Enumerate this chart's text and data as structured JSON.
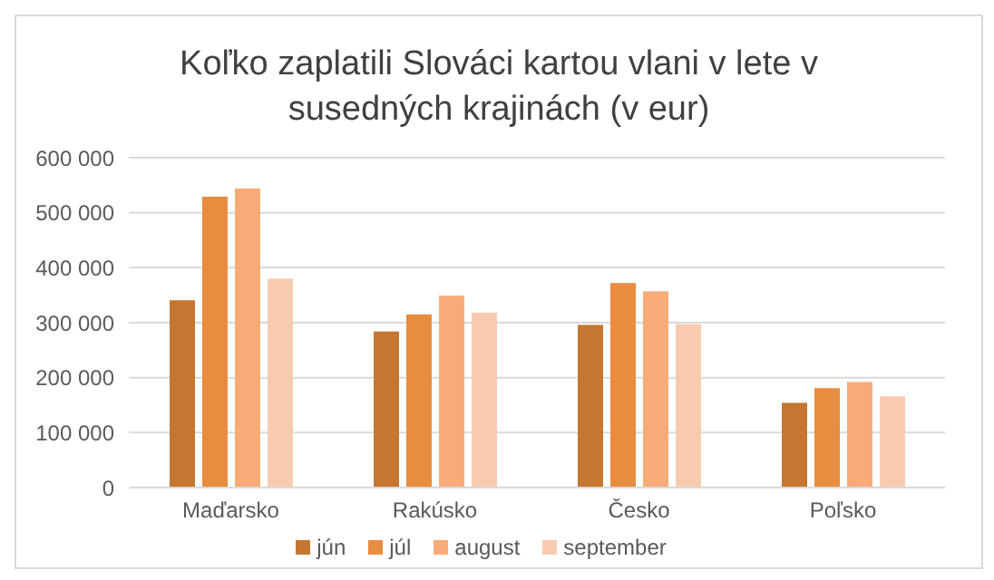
{
  "chart_data": {
    "type": "bar",
    "title": "Koľko zaplatili Slováci kartou vlani v lete v susedných krajinách (v eur)",
    "categories": [
      "Maďarsko",
      "Rakúsko",
      "Česko",
      "Poľsko"
    ],
    "series": [
      {
        "name": "jún",
        "color": "#c47733",
        "values": [
          341000,
          284000,
          296000,
          154000
        ]
      },
      {
        "name": "júl",
        "color": "#e88c40",
        "values": [
          529000,
          315000,
          372000,
          181000
        ]
      },
      {
        "name": "august",
        "color": "#f6ab78",
        "values": [
          544000,
          349000,
          357000,
          192000
        ]
      },
      {
        "name": "september",
        "color": "#f8cbb0",
        "values": [
          380000,
          318000,
          297000,
          166000
        ]
      }
    ],
    "ylim": [
      0,
      600000
    ],
    "yticks": [
      0,
      {
        "value": 100000,
        "label": "100 000"
      },
      {
        "value": 200000,
        "label": "200 000"
      },
      {
        "value": 300000,
        "label": "300 000"
      },
      {
        "value": 400000,
        "label": "400 000"
      },
      {
        "value": 500000,
        "label": "500 000"
      },
      {
        "value": 600000,
        "label": "600 000"
      }
    ],
    "grid": "y",
    "legend": "bottom"
  }
}
